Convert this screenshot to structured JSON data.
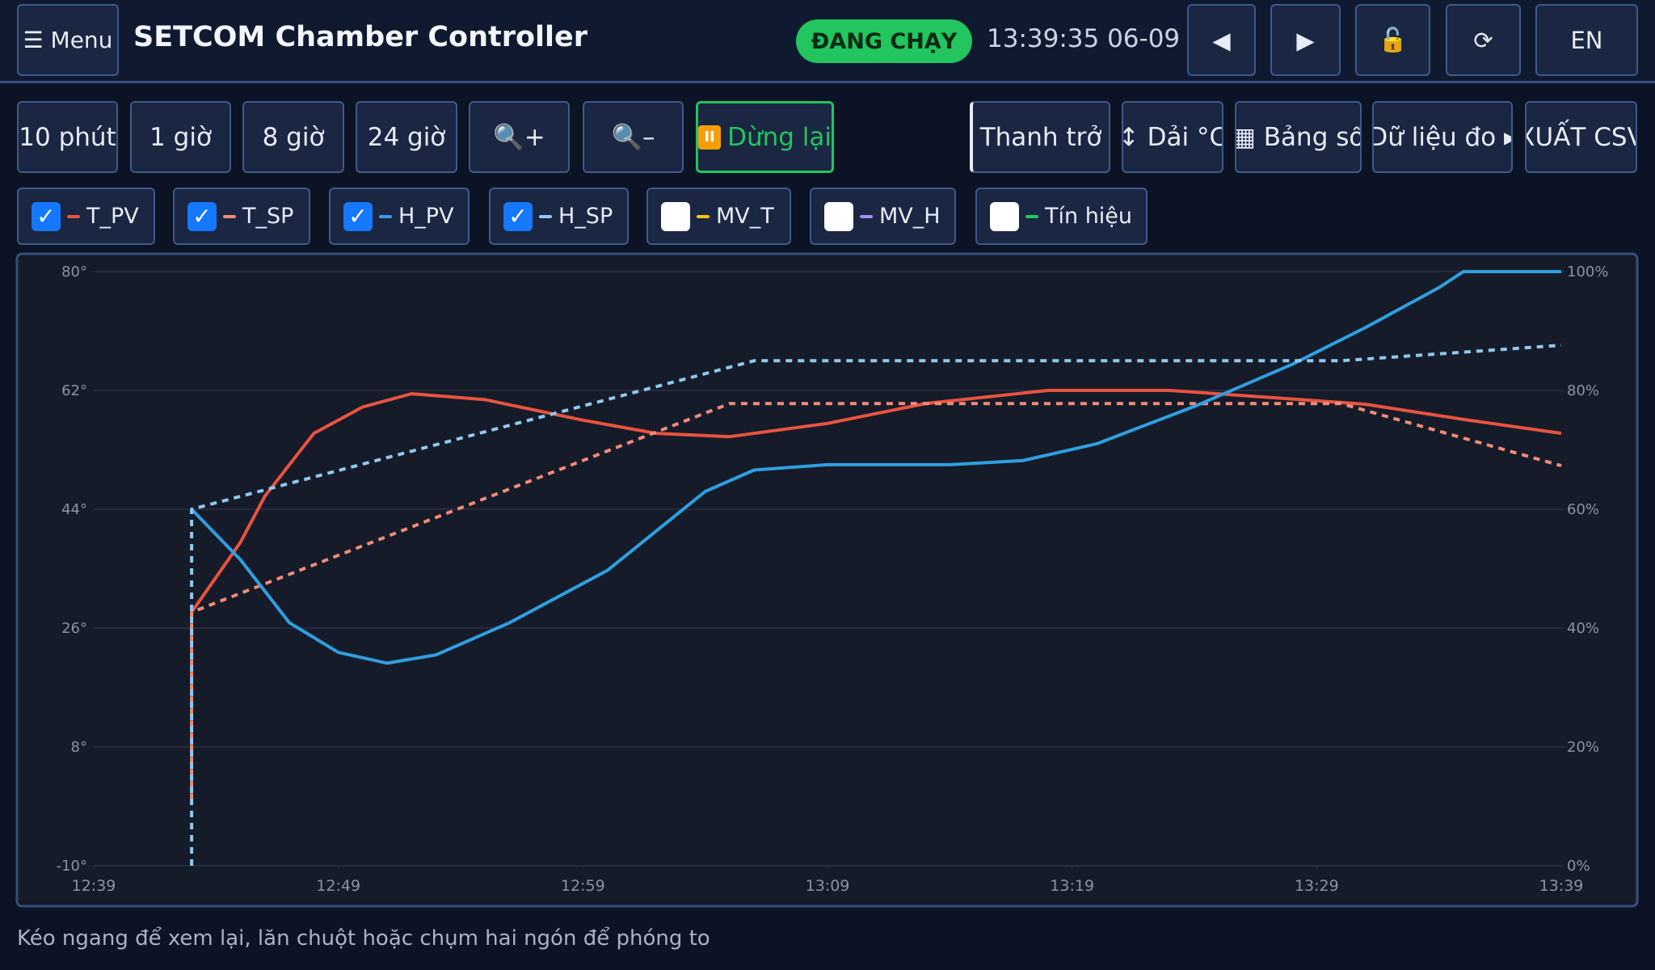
{
  "header": {
    "menu": "☰ Menu",
    "title": "SETCOM Chamber Controller",
    "status": "ĐANG CHẠY",
    "clock": "13:39:35 06-09",
    "buttons": [
      "◀",
      "▶",
      "🔓",
      "⟳",
      "EN"
    ]
  },
  "toolbar": {
    "ranges": [
      "10 phút",
      "1 giờ",
      "8 giờ",
      "24 giờ"
    ],
    "zoom": [
      "🔍+",
      "🔍–"
    ],
    "pause": "Dừng lại",
    "actions": [
      "Thanh trở",
      "↕ Dải °C",
      "▦ Bảng số",
      "Dữ liệu đo ▸",
      "XUẤT CSV"
    ]
  },
  "toggles": [
    {
      "name": "MV_T",
      "color": "#f5c518",
      "checked": false
    },
    {
      "name": "MV_H",
      "color": "#a78bfa",
      "checked": false
    },
    {
      "name": "Tín hiệu",
      "color": "#22c55e",
      "checked": false
    }
  ],
  "chart_data": {
    "type": "line",
    "xlim": [
      "12:39",
      "13:39"
    ],
    "xticks": [
      "12:39",
      "12:49",
      "12:59",
      "13:09",
      "13:19",
      "13:29",
      "13:39"
    ],
    "ylim": [
      -10,
      80
    ],
    "yticks": [
      {
        "value": -10,
        "label": "-10°"
      },
      {
        "value": 8,
        "label": "8°"
      },
      {
        "value": 26,
        "label": "26°"
      },
      {
        "value": 44,
        "label": "44°"
      },
      {
        "value": 62,
        "label": "62°"
      },
      {
        "value": 80,
        "label": "80°"
      }
    ],
    "y2lim": [
      0,
      100
    ],
    "y2ticks": [
      {
        "value": 0,
        "label": "0%"
      },
      {
        "value": 20,
        "label": "20%"
      },
      {
        "value": 40,
        "label": "40%"
      },
      {
        "value": 60,
        "label": "60%"
      },
      {
        "value": 80,
        "label": "80%"
      },
      {
        "value": 100,
        "label": "100%"
      }
    ],
    "grid": true,
    "series": [
      {
        "name": "T_PV",
        "color": "#e8533f",
        "checked": true,
        "dashed": false,
        "x": [
          "12:43",
          "12:45",
          "12:46",
          "12:48",
          "12:50",
          "12:52",
          "12:55",
          "12:59",
          "13:02",
          "13:05",
          "13:09",
          "13:13",
          "13:18",
          "13:23",
          "13:28",
          "13:31",
          "13:35",
          "13:39"
        ],
        "values": [
          28.4,
          39,
          46,
          55.5,
          59.5,
          61.5,
          60.6,
          57.5,
          55.5,
          55,
          57,
          60,
          62,
          62,
          60.7,
          59.9,
          57.6,
          55.5
        ]
      },
      {
        "name": "T_SP",
        "color": "#f08a78",
        "checked": true,
        "dashed": true,
        "x": [
          "12:43",
          "12:43",
          "13:05",
          "13:30",
          "13:39"
        ],
        "values": [
          0,
          28.4,
          60,
          60,
          50.6
        ]
      },
      {
        "name": "H_PV",
        "color": "#2f9fe0",
        "checked": true,
        "dashed": false,
        "axis": "y2",
        "x": [
          "12:43",
          "12:45",
          "12:47",
          "12:49",
          "12:51",
          "12:53",
          "12:56",
          "13:00",
          "13:04",
          "13:06",
          "13:09",
          "13:14",
          "13:17",
          "13:20",
          "13:24",
          "13:28",
          "13:31",
          "13:34",
          "13:35",
          "13:39"
        ],
        "values": [
          60,
          51.5,
          40.9,
          35.9,
          34.1,
          35.5,
          40.9,
          49.7,
          63,
          66.6,
          67.5,
          67.5,
          68.2,
          71,
          77.3,
          84.4,
          90.6,
          97.3,
          100,
          100
        ]
      },
      {
        "name": "H_SP",
        "color": "#8fc8ee",
        "checked": true,
        "dashed": true,
        "axis": "y2",
        "x": [
          "12:43",
          "12:43",
          "13:06",
          "13:30",
          "13:39"
        ],
        "values": [
          0,
          60,
          85,
          85,
          87.6
        ]
      }
    ]
  },
  "hint": "Kéo ngang để xem lại, lăn chuột hoặc chụm hai ngón để phóng to"
}
